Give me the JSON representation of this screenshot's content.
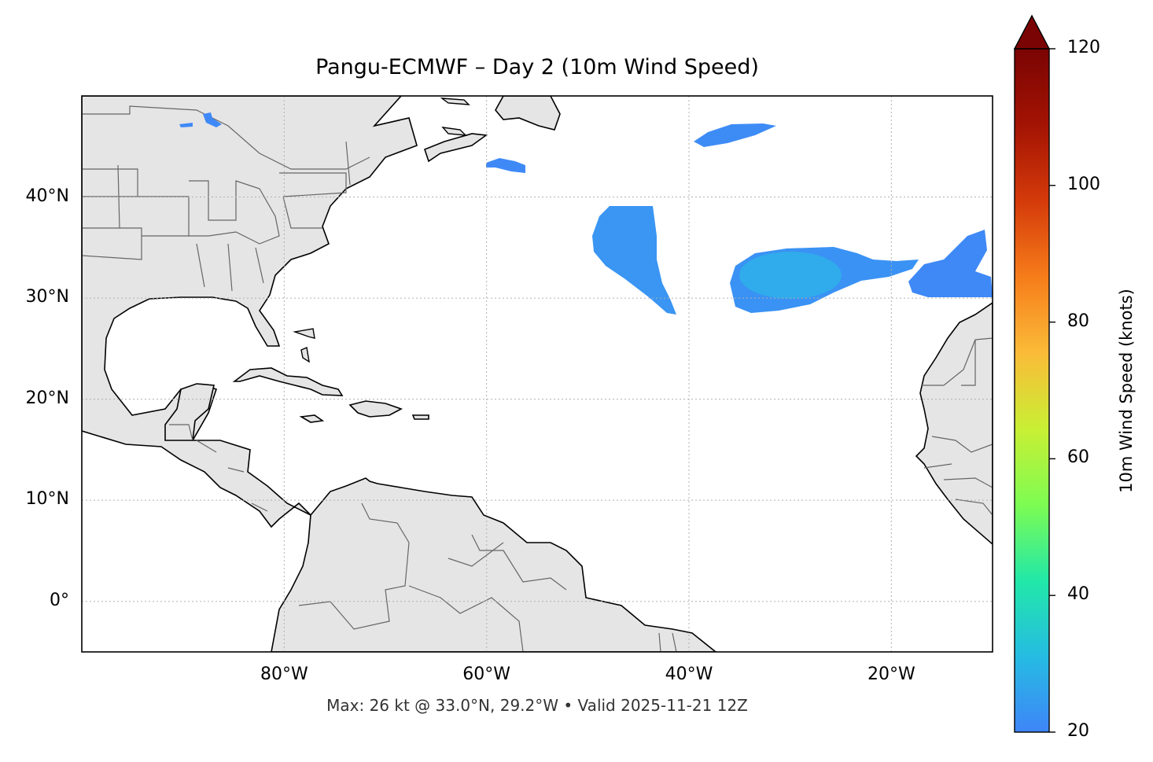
{
  "map": {
    "title": "Pangu-ECMWF – Day 2 (10m Wind Speed)",
    "footer": "Max: 26 kt @ 33.0°N, 29.2°W • Valid 2025-11-21 12Z",
    "extent": {
      "lon": [
        -100,
        -10
      ],
      "lat": [
        -5,
        50
      ]
    },
    "lat_gridlines": [
      0,
      10,
      20,
      30,
      40
    ],
    "lon_gridlines": [
      -80,
      -60,
      -40,
      -20
    ],
    "lat_tick_labels": [
      "0°",
      "10°N",
      "20°N",
      "30°N",
      "40°N"
    ],
    "lon_tick_labels": [
      "80°W",
      "60°W",
      "40°W",
      "20°W"
    ],
    "land_color": "#e5e5e5",
    "coast_color": "#000000",
    "border_color": "#666666",
    "wind_patches": [
      {
        "region": "mid-atlantic-north",
        "lat": 46,
        "lon": -34,
        "speed_kt": 21
      },
      {
        "region": "newfoundland-south",
        "lat": 43,
        "lon": -58,
        "speed_kt": 21
      },
      {
        "region": "azores-west",
        "lat": 36,
        "lon": -45,
        "speed_kt": 22
      },
      {
        "region": "azores-south",
        "lat": 33,
        "lon": -29.2,
        "speed_kt": 26
      },
      {
        "region": "canary",
        "lat": 33,
        "lon": -15,
        "speed_kt": 22
      },
      {
        "region": "great-lakes",
        "lat": 47,
        "lon": -88,
        "speed_kt": 21
      }
    ],
    "colorbar": {
      "label": "10m Wind Speed (knots)",
      "min": 20,
      "max": 120,
      "ticks": [
        "20",
        "40",
        "60",
        "80",
        "100",
        "120"
      ],
      "extend": "max",
      "colormap": "turbo",
      "stops": [
        "#3f85f8",
        "#25bce2",
        "#22e8a8",
        "#7efc52",
        "#c9ef34",
        "#fbbb38",
        "#f67c1a",
        "#d43a0a",
        "#a31303",
        "#7a0403"
      ]
    }
  }
}
